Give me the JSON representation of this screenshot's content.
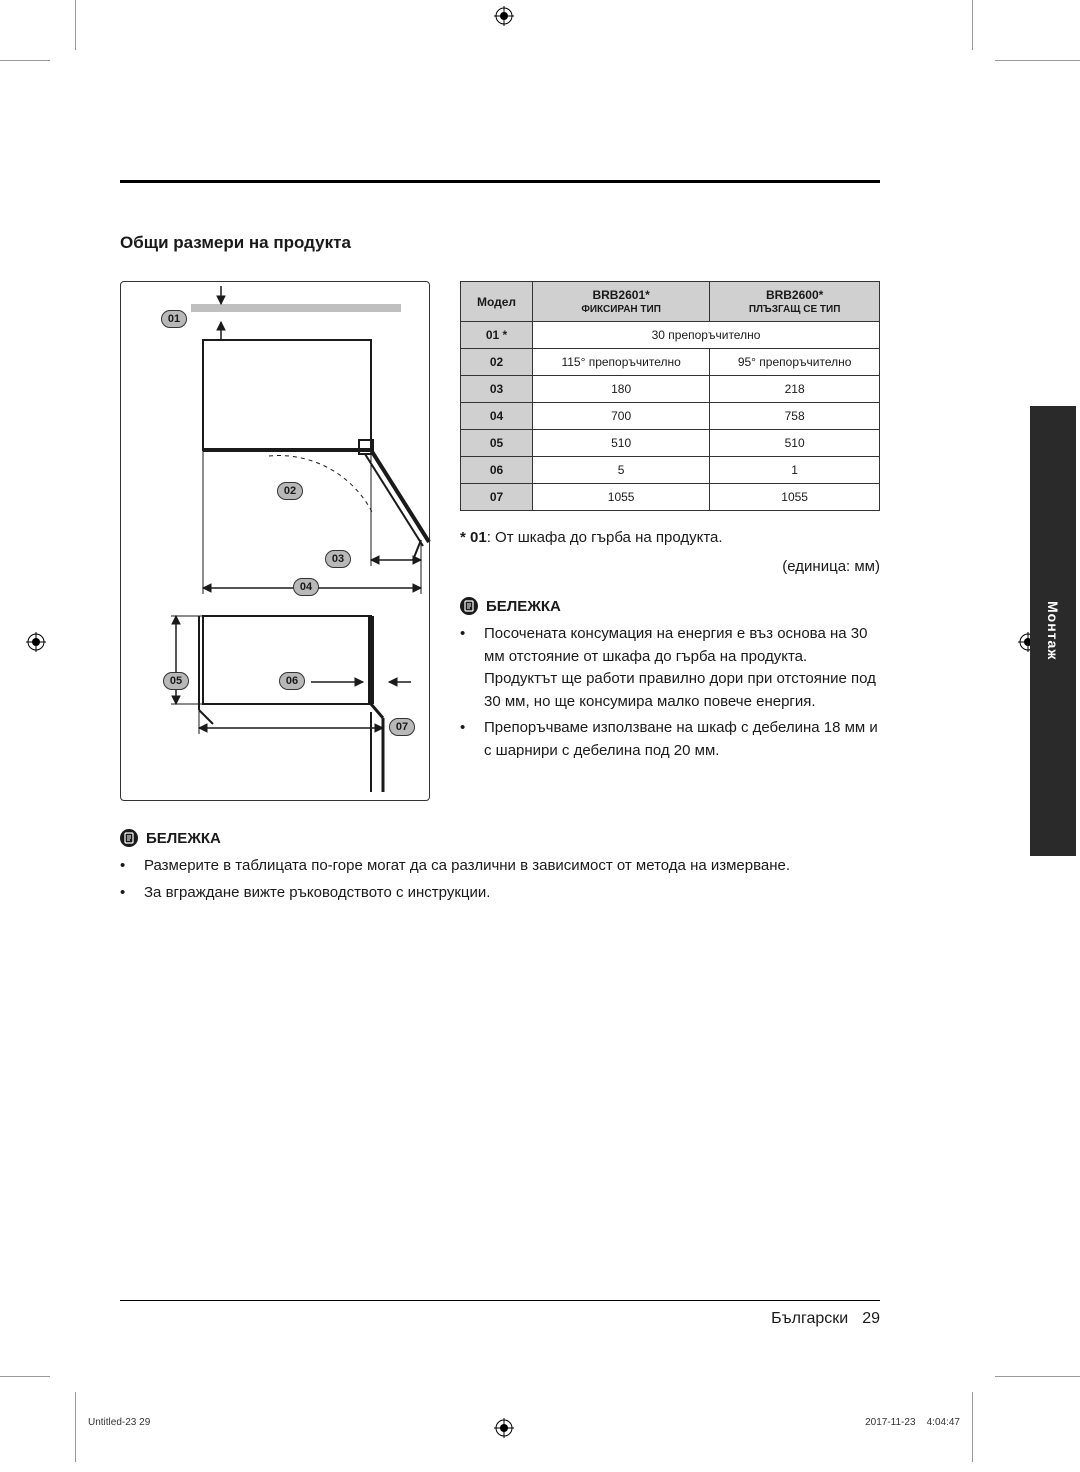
{
  "section_title": "Общи размери на продукта",
  "diagram": {
    "callouts": {
      "c01": "01",
      "c02": "02",
      "c03": "03",
      "c04": "04",
      "c05": "05",
      "c06": "06",
      "c07": "07"
    },
    "stroke": "#1a1a1a",
    "callout_bg": "#b8b8b8"
  },
  "table": {
    "header_model": "Модел",
    "model1": "BRB2601*",
    "model1_sub": "ФИКСИРАН ТИП",
    "model2": "BRB2600*",
    "model2_sub": "ПЛЪЗГАЩ СЕ ТИП",
    "rows": [
      {
        "label": "01 *",
        "v1": "30 препоръчително",
        "v2": "",
        "merged": true
      },
      {
        "label": "02",
        "v1": "115° препоръчително",
        "v2": "95° препоръчително",
        "merged": false
      },
      {
        "label": "03",
        "v1": "180",
        "v2": "218",
        "merged": false
      },
      {
        "label": "04",
        "v1": "700",
        "v2": "758",
        "merged": false
      },
      {
        "label": "05",
        "v1": "510",
        "v2": "510",
        "merged": false
      },
      {
        "label": "06",
        "v1": "5",
        "v2": "1",
        "merged": false
      },
      {
        "label": "07",
        "v1": "1055",
        "v2": "1055",
        "merged": false
      }
    ],
    "header_bg": "#d0d0d0",
    "border": "#333333"
  },
  "footnote": "* 01: От шкафа до гърба на продукта.",
  "unit": "(единица: мм)",
  "note_label": "БЕЛЕЖКА",
  "notes_right": [
    "Посочената консумация на енергия е въз основа на 30 мм отстояние от шкафа до гърба на продукта. Продуктът ще работи правилно дори при отстояние под 30 мм, но ще консумира малко повече енергия.",
    "Препоръчваме използване на шкаф с дебелина 18 мм и с шарнири с дебелина под 20 мм."
  ],
  "notes_bottom": [
    "Размерите в таблицата по-горе могат да са различни в зависимост от метода на измерване.",
    "За вграждане вижте ръководството с инструкции."
  ],
  "side_tab": "Монтаж",
  "footer_lang": "Български",
  "footer_page": "29",
  "tiny_left": "Untitled-23   29",
  "tiny_right": "2017-11-23     4:04:47",
  "colors": {
    "page_bg": "#ffffff",
    "text": "#1a1a1a",
    "tab_bg": "#2a2a2a"
  }
}
